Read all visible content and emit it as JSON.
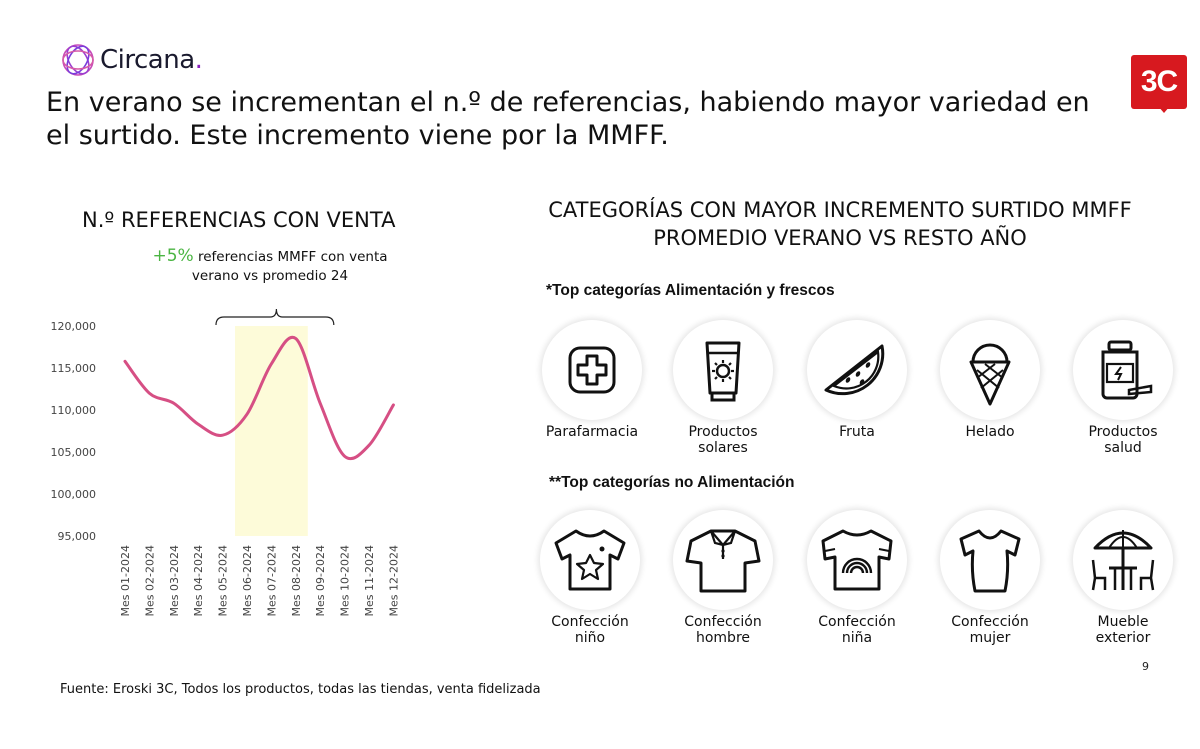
{
  "brand": {
    "name": "Circana",
    "dot": "."
  },
  "badge": {
    "text": "3C"
  },
  "headline": "En verano se incrementan el n.º de referencias, habiendo mayor variedad en el surtido. Este incremento viene por la MMFF.",
  "chart_title": "N.º REFERENCIAS CON VENTA",
  "callout": {
    "pct": "+5%",
    "text": " referencias MMFF con venta verano vs promedio 24"
  },
  "chart_data": {
    "type": "line",
    "title": "N.º REFERENCIAS CON VENTA",
    "xlabel": "",
    "ylabel": "",
    "categories": [
      "Mes 01-2024",
      "Mes 02-2024",
      "Mes 03-2024",
      "Mes 04-2024",
      "Mes 05-2024",
      "Mes 06-2024",
      "Mes 07-2024",
      "Mes 08-2024",
      "Mes 09-2024",
      "Mes 10-2024",
      "Mes 11-2024",
      "Mes 12-2024"
    ],
    "values": [
      115800,
      112000,
      110800,
      108300,
      107000,
      109500,
      115500,
      118500,
      110800,
      104500,
      105800,
      110600
    ],
    "ylim": [
      95000,
      120000
    ],
    "yticks": [
      95000,
      100000,
      105000,
      110000,
      115000,
      120000
    ],
    "ytick_labels": [
      "95,000",
      "100,000",
      "105,000",
      "110,000",
      "115,000",
      "120,000"
    ],
    "highlight_categories": [
      "Mes 06-2024",
      "Mes 08-2024"
    ],
    "line_color": "#d64f84",
    "highlight_color": "#fdfbd9",
    "grid": false
  },
  "right_title": "CATEGORÍAS CON MAYOR INCREMENTO SURTIDO MMFF PROMEDIO VERANO VS RESTO AÑO",
  "food_heading": "*Top categorías Alimentación y frescos",
  "nonfood_heading": "**Top categorías no Alimentación",
  "food_categories": [
    {
      "label": "Parafarmacia",
      "icon": "medical-cross-icon"
    },
    {
      "label": "Productos\nsolares",
      "icon": "sunscreen-icon"
    },
    {
      "label": "Fruta",
      "icon": "watermelon-icon"
    },
    {
      "label": "Helado",
      "icon": "ice-cream-icon"
    },
    {
      "label": "Productos\nsalud",
      "icon": "supplement-jar-icon"
    }
  ],
  "nonfood_categories": [
    {
      "label": "Confección\nniño",
      "icon": "kids-tshirt-icon"
    },
    {
      "label": "Confección\nhombre",
      "icon": "polo-shirt-icon"
    },
    {
      "label": "Confección\nniña",
      "icon": "rainbow-tshirt-icon"
    },
    {
      "label": "Confección\nmujer",
      "icon": "womens-tshirt-icon"
    },
    {
      "label": "Mueble\nexterior",
      "icon": "patio-furniture-icon"
    }
  ],
  "page_number": "9",
  "source": "Fuente: Eroski 3C, Todos los productos, todas las tiendas, venta fidelizada"
}
